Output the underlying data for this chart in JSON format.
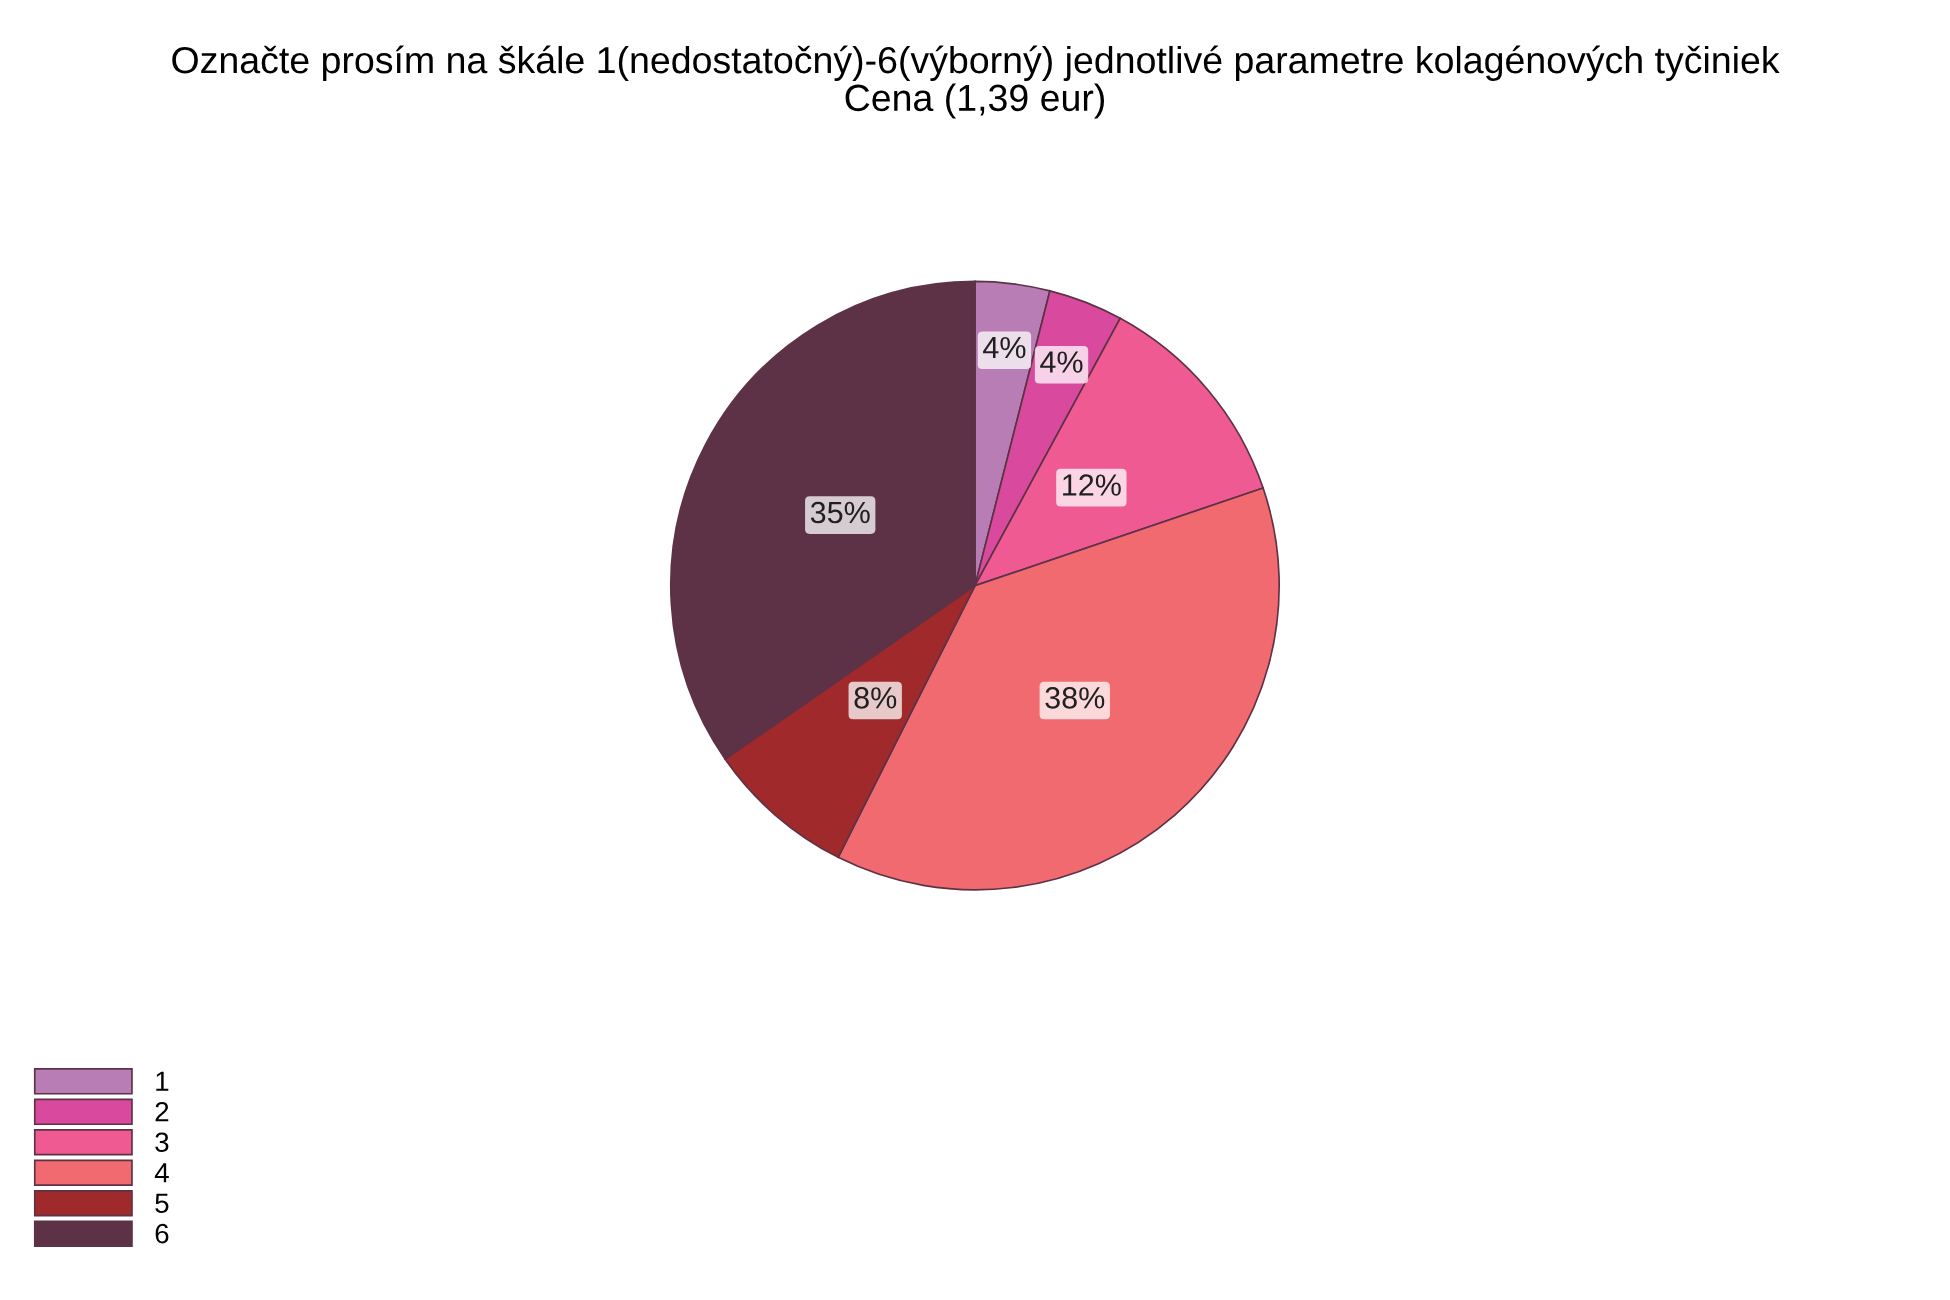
{
  "chart_data": {
    "type": "pie",
    "title": "Označte prosím na škále 1(nedostatočný)-6(výborný) jednotlivé parametre kolagénových tyčiniek\nCena (1,39 eur)",
    "categories": [
      "1",
      "2",
      "3",
      "4",
      "5",
      "6"
    ],
    "values": [
      4,
      4,
      12,
      38,
      8,
      35
    ],
    "value_labels": [
      "4%",
      "4%",
      "12%",
      "38%",
      "8%",
      "35%"
    ],
    "colors": [
      "#b87db5",
      "#d94a9e",
      "#ef5a93",
      "#f06a70",
      "#a0292c",
      "#5e3246"
    ],
    "legend": "bottom left"
  }
}
